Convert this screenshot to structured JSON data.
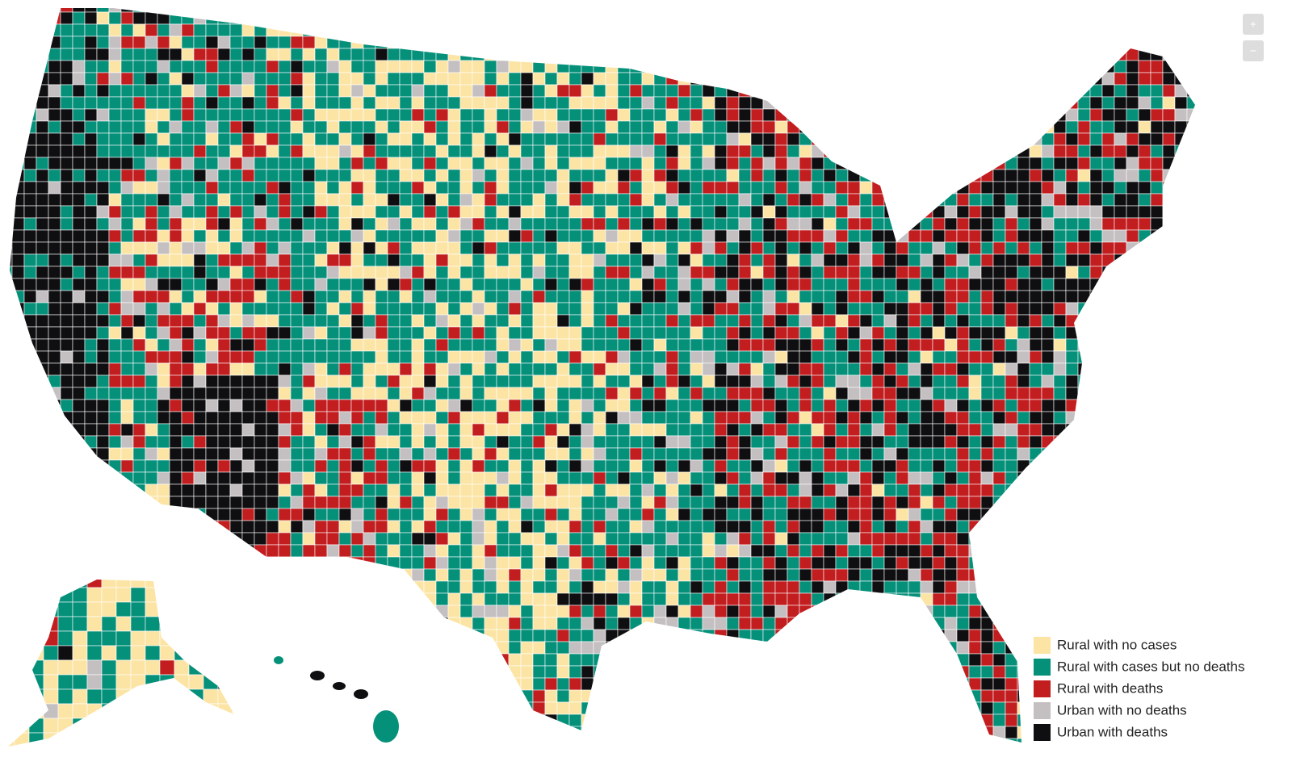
{
  "legend": {
    "items": [
      {
        "label": "Rural with no cases",
        "color": "#fce4a5"
      },
      {
        "label": "Rural with cases but no deaths",
        "color": "#05907a"
      },
      {
        "label": "Rural with deaths",
        "color": "#c21d1f"
      },
      {
        "label": "Urban with no deaths",
        "color": "#c4bfc1"
      },
      {
        "label": "Urban with deaths",
        "color": "#0f0e10"
      }
    ]
  },
  "zoom_controls": {
    "zoom_in": "+",
    "zoom_out": "−"
  }
}
